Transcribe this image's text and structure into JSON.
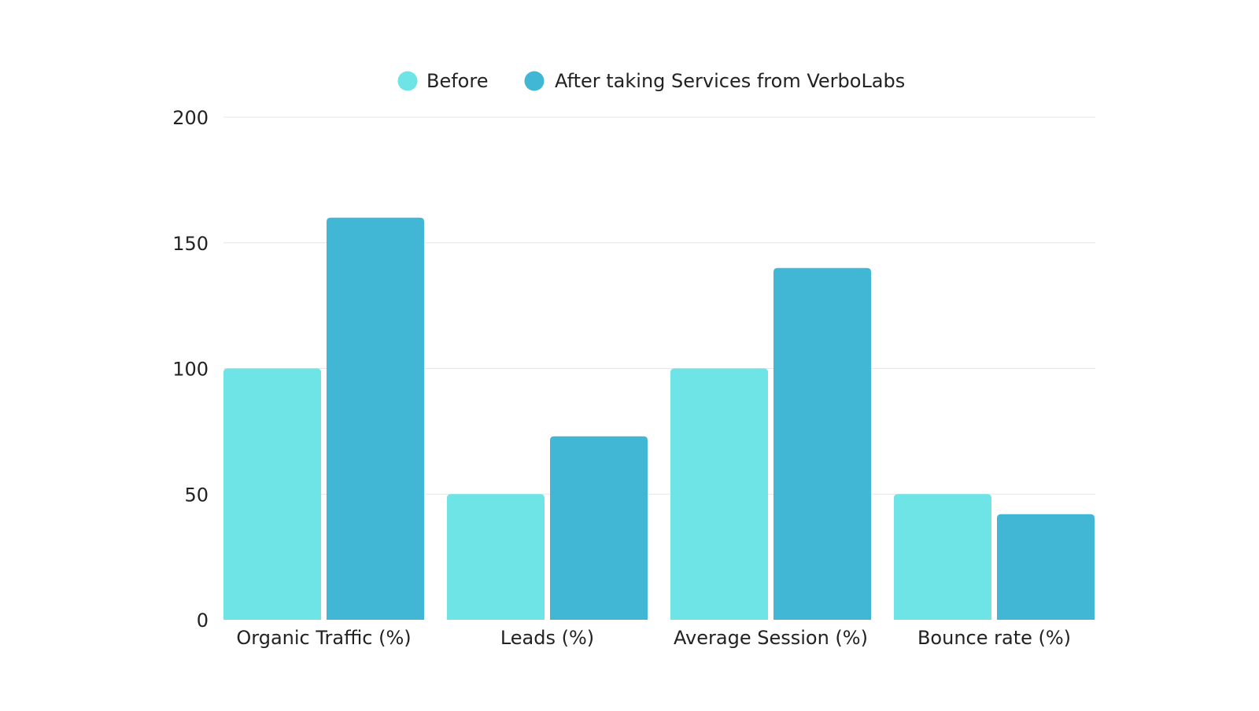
{
  "chart_data": {
    "type": "bar",
    "title": "",
    "xlabel": "",
    "ylabel": "",
    "categories": [
      "Organic Traffic (%)",
      "Leads (%)",
      "Average Session (%)",
      "Bounce rate (%)"
    ],
    "series": [
      {
        "name": "Before",
        "color": "#6ee4e6",
        "values": [
          100,
          50,
          100,
          50
        ]
      },
      {
        "name": "After taking Services from VerboLabs",
        "color": "#42b7d5",
        "values": [
          160,
          73,
          140,
          42
        ]
      }
    ],
    "ylim": [
      0,
      200
    ],
    "yticks": [
      0,
      50,
      100,
      150,
      200
    ],
    "grid": true,
    "legend_position": "top-center"
  }
}
